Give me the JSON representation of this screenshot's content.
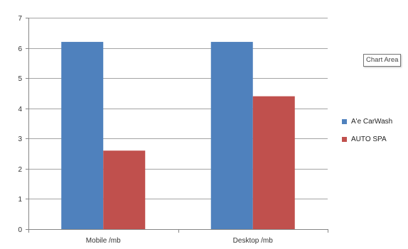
{
  "tooltip_text": "Chart Area",
  "colors": {
    "series_1": "#4f81bd",
    "series_2": "#c0504d",
    "axis": "#868686",
    "grid": "#868686"
  },
  "chart_data": {
    "type": "bar",
    "categories": [
      "Mobile /mb",
      "Desktop /mb"
    ],
    "series": [
      {
        "name": "A'e CarWash",
        "values": [
          6.2,
          6.2
        ]
      },
      {
        "name": "AUTO SPA",
        "values": [
          2.6,
          4.4
        ]
      }
    ],
    "ylim": [
      0,
      7
    ],
    "yticks": [
      0,
      1,
      2,
      3,
      4,
      5,
      6,
      7
    ],
    "grid": true,
    "legend": "right",
    "title": "",
    "xlabel": "",
    "ylabel": ""
  }
}
